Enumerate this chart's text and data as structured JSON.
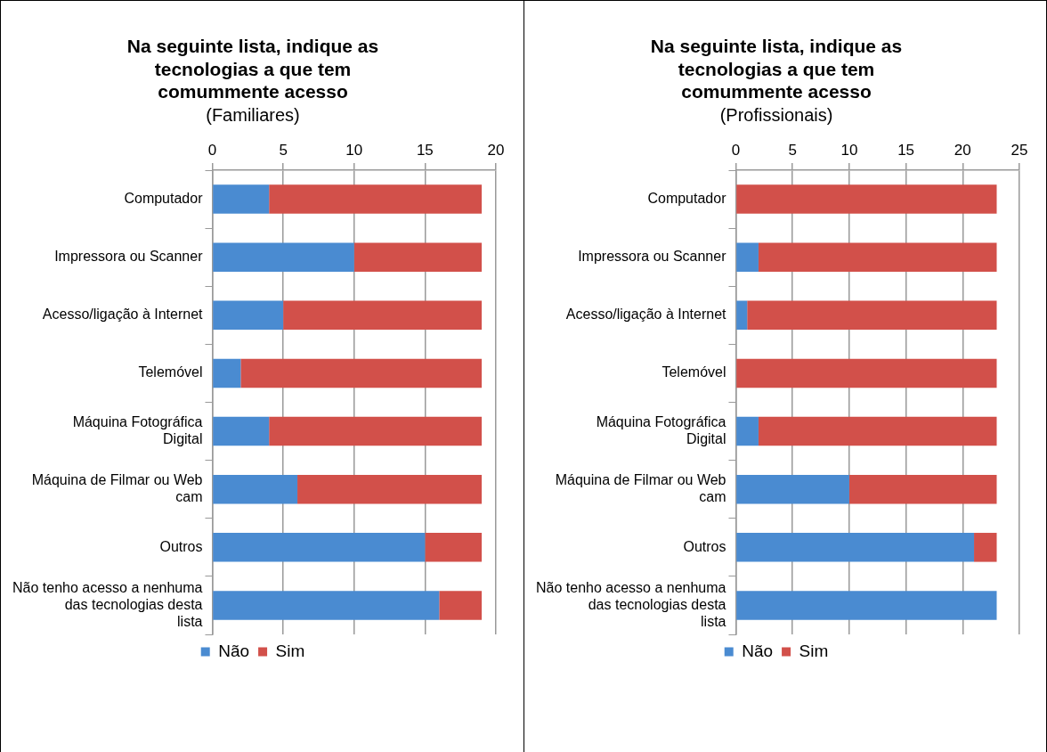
{
  "chart_data": [
    {
      "type": "bar",
      "orientation": "horizontal",
      "stacked": true,
      "title": "Na seguinte lista, indique as tecnologias a que tem comummente acesso",
      "subtitle": "(Familiares)",
      "categories": [
        "Computador",
        "Impressora ou Scanner",
        "Acesso/ligação à Internet",
        "Telemóvel",
        "Máquina Fotográfica Digital",
        "Máquina de Filmar ou Web cam",
        "Outros",
        "Não tenho acesso a nenhuma das tecnologias desta lista"
      ],
      "series": [
        {
          "name": "Não",
          "color": "#4a8bd1",
          "values": [
            4,
            10,
            5,
            2,
            4,
            6,
            15,
            16
          ]
        },
        {
          "name": "Sim",
          "color": "#d2504a",
          "values": [
            15,
            9,
            14,
            17,
            15,
            13,
            4,
            3
          ]
        }
      ],
      "xlim": [
        0,
        20
      ],
      "xticks": [
        0,
        5,
        10,
        15,
        20
      ],
      "grid": "x",
      "legend": "bottom"
    },
    {
      "type": "bar",
      "orientation": "horizontal",
      "stacked": true,
      "title": "Na seguinte lista, indique as tecnologias a que tem comummente acesso",
      "subtitle": "(Profissionais)",
      "categories": [
        "Computador",
        "Impressora ou Scanner",
        "Acesso/ligação à Internet",
        "Telemóvel",
        "Máquina Fotográfica Digital",
        "Máquina de Filmar ou Web cam",
        "Outros",
        "Não tenho acesso a nenhuma das tecnologias desta lista"
      ],
      "series": [
        {
          "name": "Não",
          "color": "#4a8bd1",
          "values": [
            0,
            2,
            1,
            0,
            2,
            10,
            21,
            23
          ]
        },
        {
          "name": "Sim",
          "color": "#d2504a",
          "values": [
            23,
            21,
            22,
            23,
            21,
            13,
            2,
            0
          ]
        }
      ],
      "xlim": [
        0,
        25
      ],
      "xticks": [
        0,
        5,
        10,
        15,
        20,
        25
      ],
      "grid": "x",
      "legend": "bottom"
    }
  ]
}
